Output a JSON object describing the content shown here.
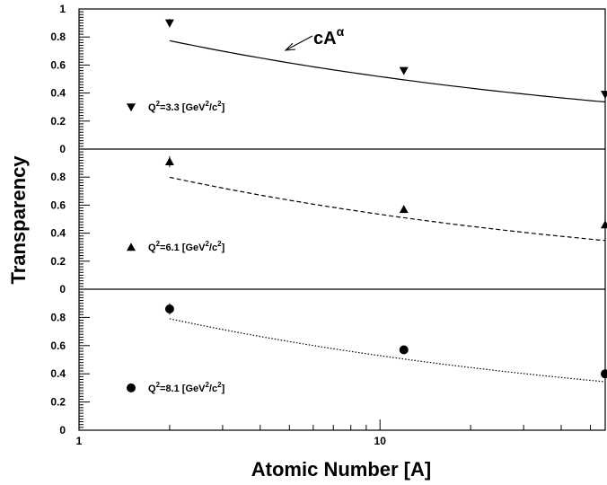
{
  "chart_data": {
    "type": "scatter",
    "xlabel": "Atomic Number [A]",
    "ylabel": "Transparency",
    "x_scale": "log",
    "xlim": [
      1,
      56
    ],
    "x_ticks": [
      "1",
      "10"
    ],
    "annotation": {
      "base": "cA",
      "superscript": "α"
    },
    "panels": [
      {
        "marker": "triangle-down",
        "fit_style": "solid",
        "ylim": [
          0,
          1
        ],
        "y_ticks": [
          "0",
          "0.2",
          "0.4",
          "0.6",
          "0.8",
          "1"
        ],
        "legend": {
          "prefix": "Q",
          "sup1": "2",
          "middle": "=3.3 [GeV",
          "sup2": "2",
          "slash": "/c",
          "sup3": "2",
          "suffix": "]"
        },
        "points": [
          {
            "x": 2,
            "y": 0.9,
            "err": 0.03
          },
          {
            "x": 12,
            "y": 0.56,
            "err": 0.02
          },
          {
            "x": 56,
            "y": 0.39,
            "err": 0.02
          }
        ],
        "fit": {
          "c": 0.92,
          "alpha": -0.25
        }
      },
      {
        "marker": "triangle-up",
        "fit_style": "dashed",
        "ylim": [
          0,
          1
        ],
        "y_ticks": [
          "0",
          "0.2",
          "0.4",
          "0.6",
          "0.8"
        ],
        "legend": {
          "prefix": "Q",
          "sup1": "2",
          "middle": "=6.1 [GeV",
          "sup2": "2",
          "slash": "/c",
          "sup3": "2",
          "suffix": "]"
        },
        "points": [
          {
            "x": 2,
            "y": 0.91,
            "err": 0.04
          },
          {
            "x": 12,
            "y": 0.57,
            "err": 0.02
          },
          {
            "x": 56,
            "y": 0.46,
            "err": 0.05
          }
        ],
        "fit": {
          "c": 0.95,
          "alpha": -0.25
        }
      },
      {
        "marker": "circle",
        "fit_style": "dotted",
        "ylim": [
          0,
          1
        ],
        "y_ticks": [
          "0",
          "0.2",
          "0.4",
          "0.6",
          "0.8"
        ],
        "legend": {
          "prefix": "Q",
          "sup1": "2",
          "middle": "=8.1 [GeV",
          "sup2": "2",
          "slash": "/c",
          "sup3": "2",
          "suffix": "]"
        },
        "points": [
          {
            "x": 2,
            "y": 0.86,
            "err": 0.04
          },
          {
            "x": 12,
            "y": 0.57,
            "err": 0.02
          },
          {
            "x": 56,
            "y": 0.4,
            "err": 0.02
          }
        ],
        "fit": {
          "c": 0.94,
          "alpha": -0.25
        }
      }
    ]
  }
}
